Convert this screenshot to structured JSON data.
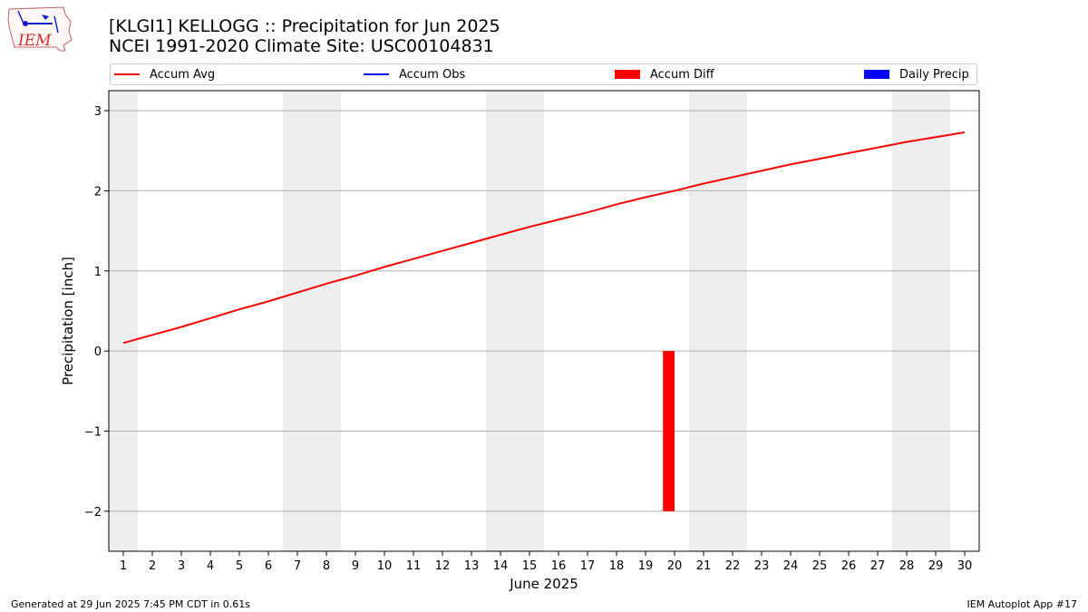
{
  "header": {
    "title_line1": "[KLGI1] KELLOGG :: Precipitation for Jun 2025",
    "title_line2": "NCEI 1991-2020 Climate Site: USC00104831",
    "logo_text": "IEM"
  },
  "legend": {
    "items": [
      {
        "label": "Accum Avg",
        "kind": "line",
        "color": "#ff0000"
      },
      {
        "label": "Accum Obs",
        "kind": "line",
        "color": "#0000ff"
      },
      {
        "label": "Accum Diff",
        "kind": "box",
        "color": "#ff0000"
      },
      {
        "label": "Daily Precip",
        "kind": "box",
        "color": "#0000ff"
      }
    ]
  },
  "footer": {
    "generated": "Generated at 29 Jun 2025 7:45 PM CDT in 0.61s",
    "app": "IEM Autoplot App #17"
  },
  "chart_data": {
    "type": "line",
    "xlabel": "June 2025",
    "ylabel": "Precipitation [inch]",
    "xlim": [
      0.5,
      30.5
    ],
    "ylim": [
      -2.5,
      3.25
    ],
    "yticks": [
      -2,
      -1,
      0,
      1,
      2,
      3
    ],
    "xticks": [
      1,
      2,
      3,
      4,
      5,
      6,
      7,
      8,
      9,
      10,
      11,
      12,
      13,
      14,
      15,
      16,
      17,
      18,
      19,
      20,
      21,
      22,
      23,
      24,
      25,
      26,
      27,
      28,
      29,
      30
    ],
    "grid": "horizontal",
    "legend_position": "top",
    "weekend_shading": [
      [
        0.5,
        1.5
      ],
      [
        6.5,
        8.5
      ],
      [
        13.5,
        15.5
      ],
      [
        20.5,
        22.5
      ],
      [
        27.5,
        29.5
      ]
    ],
    "series": [
      {
        "name": "Accum Avg",
        "color": "#ff0000",
        "x": [
          1,
          2,
          3,
          4,
          5,
          6,
          7,
          8,
          9,
          10,
          11,
          12,
          13,
          14,
          15,
          16,
          17,
          18,
          19,
          20,
          21,
          22,
          23,
          24,
          25,
          26,
          27,
          28,
          29,
          30
        ],
        "values": [
          0.1,
          0.2,
          0.3,
          0.41,
          0.52,
          0.62,
          0.73,
          0.84,
          0.94,
          1.05,
          1.15,
          1.25,
          1.35,
          1.45,
          1.55,
          1.64,
          1.73,
          1.83,
          1.92,
          2.0,
          2.09,
          2.17,
          2.25,
          2.33,
          2.4,
          2.47,
          2.54,
          2.61,
          2.67,
          2.73
        ]
      },
      {
        "name": "Accum Diff",
        "type": "bar",
        "color": "#ff0000",
        "x": [
          19.8
        ],
        "values": [
          -2.0
        ]
      }
    ]
  }
}
